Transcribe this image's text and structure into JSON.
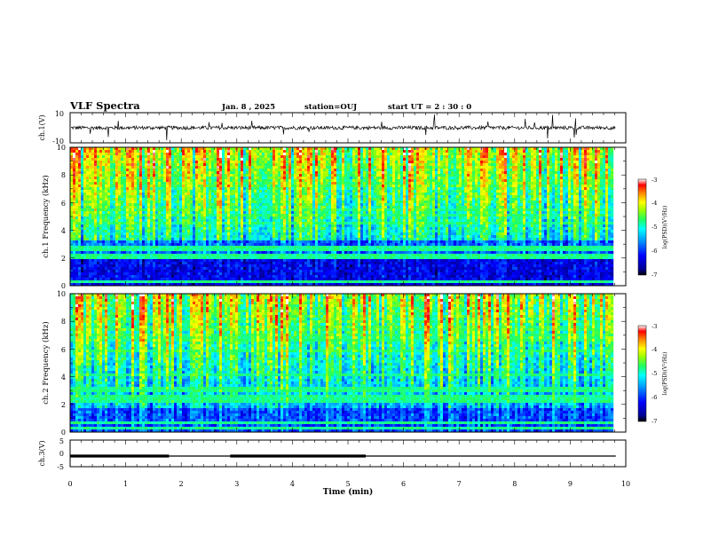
{
  "header": {
    "title": "VLF Spectra",
    "date": "Jan. 8 , 2025",
    "station": "station=OUJ",
    "start": "start UT = 2 : 30 : 0"
  },
  "chart_data": [
    {
      "type": "line",
      "panel": "ch1-waveform",
      "ylabel": "ch.1(V)",
      "ylim": [
        -10,
        10
      ],
      "yticks": [
        "10",
        "-10"
      ],
      "xlim": [
        0,
        10
      ],
      "series_note": "noisy waveform around 0 V with sparse spikes",
      "baseline": 0
    },
    {
      "type": "heatmap",
      "panel": "ch1-spectrogram",
      "ylabel": "ch.1 Frequency (kHz)",
      "ylim": [
        0,
        10
      ],
      "yticks": [
        "0",
        "2",
        "4",
        "6",
        "8",
        "10"
      ],
      "xlim": [
        0,
        10
      ],
      "colorbar": {
        "label": "log(PSD)(V²/Hz)",
        "range": [
          -7,
          -3
        ],
        "ticks": [
          "-3",
          "-4",
          "-5",
          "-6",
          "-7"
        ]
      }
    },
    {
      "type": "heatmap",
      "panel": "ch2-spectrogram",
      "ylabel": "ch.2 Frequency (kHz)",
      "ylim": [
        0,
        10
      ],
      "yticks": [
        "0",
        "2",
        "4",
        "6",
        "8",
        "10"
      ],
      "xlim": [
        0,
        10
      ],
      "colorbar": {
        "label": "log(PSD)(V²/Hz)",
        "range": [
          -7,
          -3
        ],
        "ticks": [
          "-3",
          "-4",
          "-5",
          "-6",
          "-7"
        ]
      }
    },
    {
      "type": "line",
      "panel": "ch3-signal",
      "ylabel": "ch.3(V)",
      "ylim": [
        -5,
        5
      ],
      "yticks": [
        "5",
        "0",
        "-5"
      ],
      "xlim": [
        0,
        10
      ],
      "xlabel": "Time (min)",
      "xticks": [
        "0",
        "1",
        "2",
        "3",
        "4",
        "5",
        "6",
        "7",
        "8",
        "9",
        "10"
      ],
      "level": -1,
      "thick_segments": [
        [
          0,
          1.78
        ],
        [
          2.88,
          5.32
        ]
      ]
    }
  ],
  "colors": {
    "colormap": [
      "#000000",
      "#000080",
      "#0000ff",
      "#00a0ff",
      "#00ffff",
      "#40ff80",
      "#a0ff00",
      "#ffff00",
      "#ff8000",
      "#ff0000",
      "#ffffff"
    ]
  }
}
